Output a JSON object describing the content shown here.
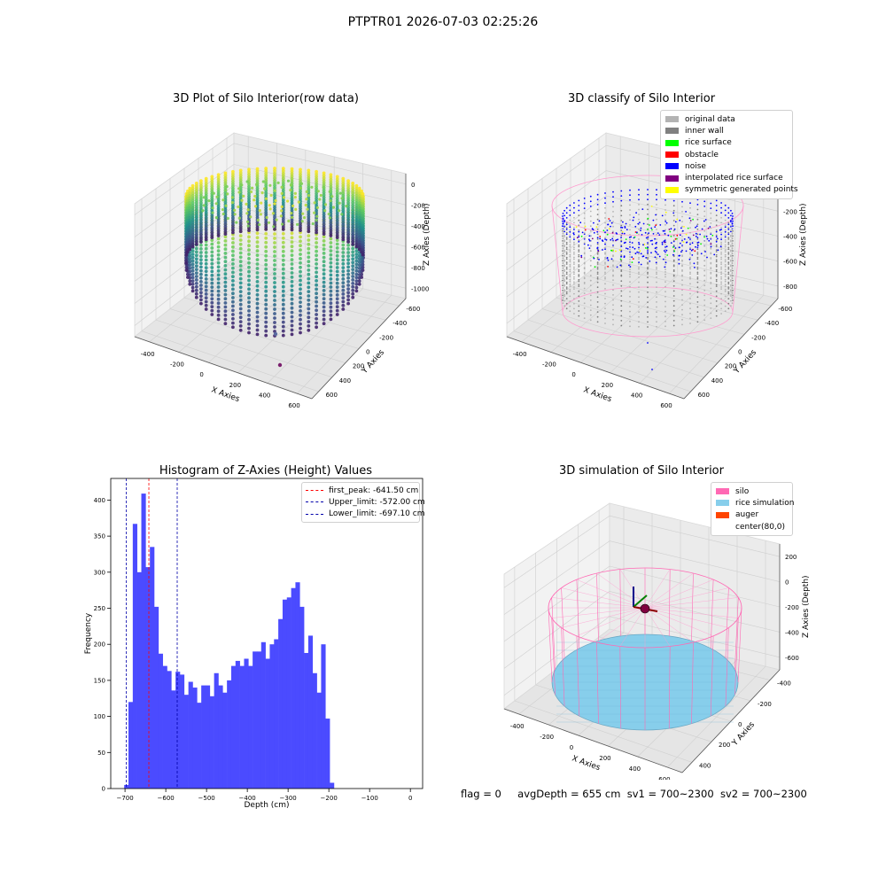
{
  "figure": {
    "suptitle": "PTPTR01 2026-07-03 02:25:26",
    "footer": {
      "flag": "flag = 0",
      "avg_depth": "avgDepth = 655 cm",
      "sv1": "sv1 = 700~2300",
      "sv2": "sv2 = 700~2300"
    }
  },
  "chart_data": [
    {
      "type": "scatter",
      "subtype": "3d",
      "title": "3D Plot of Silo Interior(row data)",
      "xlabel": "X Axies",
      "ylabel": "Y Axies",
      "zlabel": "Z Axies (Depth)",
      "xticks": [
        "-400",
        "-200",
        "0",
        "200",
        "400",
        "600"
      ],
      "yticks": [
        "-600",
        "-400",
        "-200",
        "0",
        "200",
        "400",
        "600"
      ],
      "zticks": [
        "0",
        "-200",
        "-400",
        "-600",
        "-800",
        "-1000"
      ],
      "colormap": "viridis",
      "notes": "cylindrical point cloud of silo wall; color by depth"
    },
    {
      "type": "scatter",
      "subtype": "3d",
      "title": "3D classify of Silo Interior",
      "xlabel": "X Axies",
      "ylabel": "Y Axies",
      "zlabel": "Z Axies (Depth)",
      "xticks": [
        "-400",
        "-200",
        "0",
        "200",
        "400",
        "600"
      ],
      "yticks": [
        "-600",
        "-400",
        "-200",
        "0",
        "200",
        "400",
        "600"
      ],
      "zticks": [
        "0",
        "-200",
        "-400",
        "-600",
        "-800"
      ],
      "legend_position": "top-right",
      "legend": [
        {
          "label": "original data",
          "color": "#b3b3b3"
        },
        {
          "label": "inner wall",
          "color": "#808080"
        },
        {
          "label": "rice surface",
          "color": "#00ff00"
        },
        {
          "label": "obstacle",
          "color": "#ff0000"
        },
        {
          "label": "noise",
          "color": "#0000ff"
        },
        {
          "label": "interpolated rice surface",
          "color": "#800080"
        },
        {
          "label": "symmetric generated points",
          "color": "#ffff00"
        }
      ]
    },
    {
      "type": "bar",
      "subtype": "histogram",
      "title": "Histogram of Z-Axies (Height) Values",
      "xlabel": "Depth (cm)",
      "ylabel": "Frequency",
      "xlim": [
        -735,
        30
      ],
      "ylim": [
        0,
        430
      ],
      "xticks": [
        -700,
        -600,
        -500,
        -400,
        -300,
        -200,
        -100,
        0
      ],
      "yticks": [
        0,
        50,
        100,
        150,
        200,
        250,
        300,
        350,
        400
      ],
      "bar_color": "#4b4bff",
      "bin_start": -702,
      "bin_width": 10.5,
      "values": [
        5,
        120,
        367,
        300,
        409,
        307,
        335,
        252,
        187,
        170,
        163,
        136,
        162,
        158,
        130,
        148,
        140,
        119,
        143,
        143,
        128,
        160,
        143,
        133,
        150,
        170,
        177,
        170,
        180,
        170,
        190,
        190,
        203,
        180,
        200,
        207,
        235,
        262,
        265,
        278,
        286,
        252,
        188,
        212,
        160,
        133,
        200,
        97,
        8
      ],
      "legend_position": "top-right",
      "vlines": [
        {
          "label": "first_peak: -641.50 cm",
          "x": -641.5,
          "color": "#ff0000"
        },
        {
          "label": "Upper_limit: -572.00 cm",
          "x": -572.0,
          "color": "#0000aa"
        },
        {
          "label": "Lower_limit: -697.10 cm",
          "x": -697.1,
          "color": "#0000aa"
        }
      ]
    },
    {
      "type": "scatter",
      "subtype": "3d",
      "title": "3D simulation of Silo Interior",
      "xlabel": "X Axies",
      "ylabel": "Y Axies",
      "zlabel": "Z Axies (Depth)",
      "xticks": [
        "-400",
        "-200",
        "0",
        "200",
        "400",
        "600"
      ],
      "yticks": [
        "-400",
        "-200",
        "0",
        "200",
        "400"
      ],
      "zticks": [
        "200",
        "0",
        "-200",
        "-400",
        "-600"
      ],
      "legend_position": "top-right",
      "legend": [
        {
          "label": "silo",
          "color": "#ff69b4"
        },
        {
          "label": "rice simulation",
          "color": "#87ceeb"
        },
        {
          "label": "auger",
          "color": "#ff4500"
        },
        {
          "label": "center(80,0)",
          "color": ""
        }
      ]
    }
  ]
}
